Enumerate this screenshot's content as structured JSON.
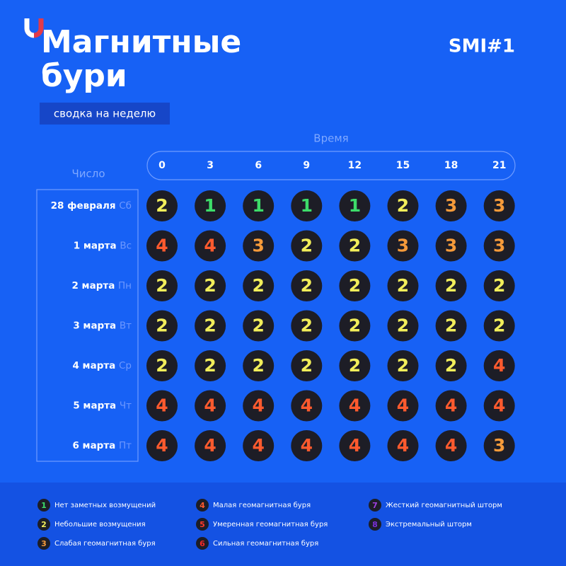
{
  "header": {
    "title_lines": [
      "Магнитные",
      "бури"
    ],
    "subtitle": "сводка на неделю",
    "brand": "SMI#1"
  },
  "table": {
    "time_label": "Время",
    "date_label": "Число",
    "times": [
      0,
      3,
      6,
      9,
      12,
      15,
      18,
      21
    ],
    "rows": [
      {
        "date": "28 февраля",
        "weekday": "Сб",
        "values": [
          2,
          1,
          1,
          1,
          1,
          2,
          3,
          3
        ]
      },
      {
        "date": "1 марта",
        "weekday": "Вс",
        "values": [
          4,
          4,
          3,
          2,
          2,
          3,
          3,
          3
        ]
      },
      {
        "date": "2 марта",
        "weekday": "Пн",
        "values": [
          2,
          2,
          2,
          2,
          2,
          2,
          2,
          2
        ]
      },
      {
        "date": "3 марта",
        "weekday": "Вт",
        "values": [
          2,
          2,
          2,
          2,
          2,
          2,
          2,
          2
        ]
      },
      {
        "date": "4 марта",
        "weekday": "Ср",
        "values": [
          2,
          2,
          2,
          2,
          2,
          2,
          2,
          4
        ]
      },
      {
        "date": "5 марта",
        "weekday": "Чт",
        "values": [
          4,
          4,
          4,
          4,
          4,
          4,
          4,
          4
        ]
      },
      {
        "date": "6 марта",
        "weekday": "Пт",
        "values": [
          4,
          4,
          4,
          4,
          4,
          4,
          4,
          3
        ]
      }
    ]
  },
  "legend": [
    {
      "level": 1,
      "label": "Нет заметных возмущений",
      "color": "#3ddc6a"
    },
    {
      "level": 2,
      "label": "Небольшие возмущения",
      "color": "#f2ee5a"
    },
    {
      "level": 3,
      "label": "Слабая геомагнитная буря",
      "color": "#f59a3a"
    },
    {
      "level": 4,
      "label": "Малая геомагнитная буря",
      "color": "#ff5a2e"
    },
    {
      "level": 5,
      "label": "Умеренная геомагнитная буря",
      "color": "#ff3a2a"
    },
    {
      "level": 6,
      "label": "Сильная геомагнитная буря",
      "color": "#f02a2a"
    },
    {
      "level": 7,
      "label": "Жесткий геомагнитный шторм",
      "color": "#a040e0"
    },
    {
      "level": 8,
      "label": "Экстремальный шторм",
      "color": "#7a30d8"
    }
  ]
}
